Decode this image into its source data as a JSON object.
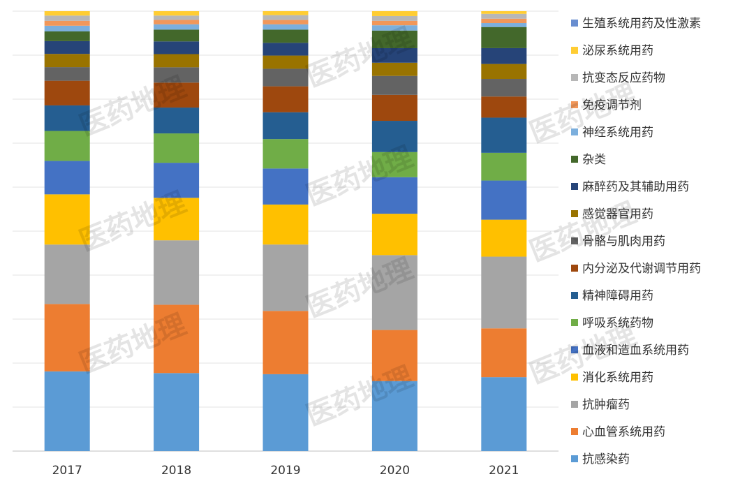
{
  "chart_data": {
    "type": "bar",
    "stacked": true,
    "normalized_to": 1,
    "ylim": [
      0,
      1
    ],
    "categories": [
      "2017",
      "2018",
      "2019",
      "2020",
      "2021"
    ],
    "grid": "horizontal",
    "legend_position": "right",
    "series": [
      {
        "name": "抗感染药",
        "color": "#5B9BD5",
        "values": [
          0.181,
          0.178,
          0.175,
          0.159,
          0.168
        ]
      },
      {
        "name": "心血管系统用药",
        "color": "#ED7D31",
        "values": [
          0.153,
          0.156,
          0.144,
          0.116,
          0.111
        ]
      },
      {
        "name": "抗肿瘤药",
        "color": "#A5A5A5",
        "values": [
          0.135,
          0.147,
          0.151,
          0.17,
          0.163
        ]
      },
      {
        "name": "消化系统用药",
        "color": "#FFC000",
        "values": [
          0.114,
          0.097,
          0.091,
          0.094,
          0.084
        ]
      },
      {
        "name": "血液和造血系统用药",
        "color": "#4472C4",
        "values": [
          0.076,
          0.08,
          0.082,
          0.083,
          0.089
        ]
      },
      {
        "name": "呼吸系统药物",
        "color": "#70AD47",
        "values": [
          0.068,
          0.067,
          0.067,
          0.057,
          0.063
        ]
      },
      {
        "name": "精神障碍用药",
        "color": "#255E91",
        "values": [
          0.058,
          0.059,
          0.061,
          0.071,
          0.08
        ]
      },
      {
        "name": "内分泌及代谢调节用药",
        "color": "#9E480E",
        "values": [
          0.056,
          0.057,
          0.059,
          0.059,
          0.048
        ]
      },
      {
        "name": "骨骼与肌肉用药",
        "color": "#636363",
        "values": [
          0.031,
          0.035,
          0.04,
          0.043,
          0.04
        ]
      },
      {
        "name": "感觉器官用药",
        "color": "#997300",
        "values": [
          0.03,
          0.03,
          0.03,
          0.03,
          0.034
        ]
      },
      {
        "name": "麻醉药及其辅助用药",
        "color": "#264478",
        "values": [
          0.029,
          0.029,
          0.029,
          0.033,
          0.036
        ]
      },
      {
        "name": "杂类",
        "color": "#43682B",
        "values": [
          0.022,
          0.027,
          0.03,
          0.04,
          0.048
        ]
      },
      {
        "name": "神经系统用药",
        "color": "#7CAFDD",
        "values": [
          0.013,
          0.012,
          0.012,
          0.012,
          0.009
        ]
      },
      {
        "name": "免疫调节剂",
        "color": "#F1975A",
        "values": [
          0.011,
          0.01,
          0.01,
          0.01,
          0.01
        ]
      },
      {
        "name": "抗变态反应药物",
        "color": "#B7B7B7",
        "values": [
          0.012,
          0.01,
          0.011,
          0.011,
          0.011
        ]
      },
      {
        "name": "泌尿系统用药",
        "color": "#FFCD33",
        "values": [
          0.01,
          0.01,
          0.009,
          0.011,
          0.006
        ]
      },
      {
        "name": "生殖系统用药及性激素",
        "color": "#698ED0",
        "values": [
          0.0,
          0.0,
          0.0,
          0.0,
          0.0
        ]
      }
    ]
  },
  "watermark": "医药地理"
}
